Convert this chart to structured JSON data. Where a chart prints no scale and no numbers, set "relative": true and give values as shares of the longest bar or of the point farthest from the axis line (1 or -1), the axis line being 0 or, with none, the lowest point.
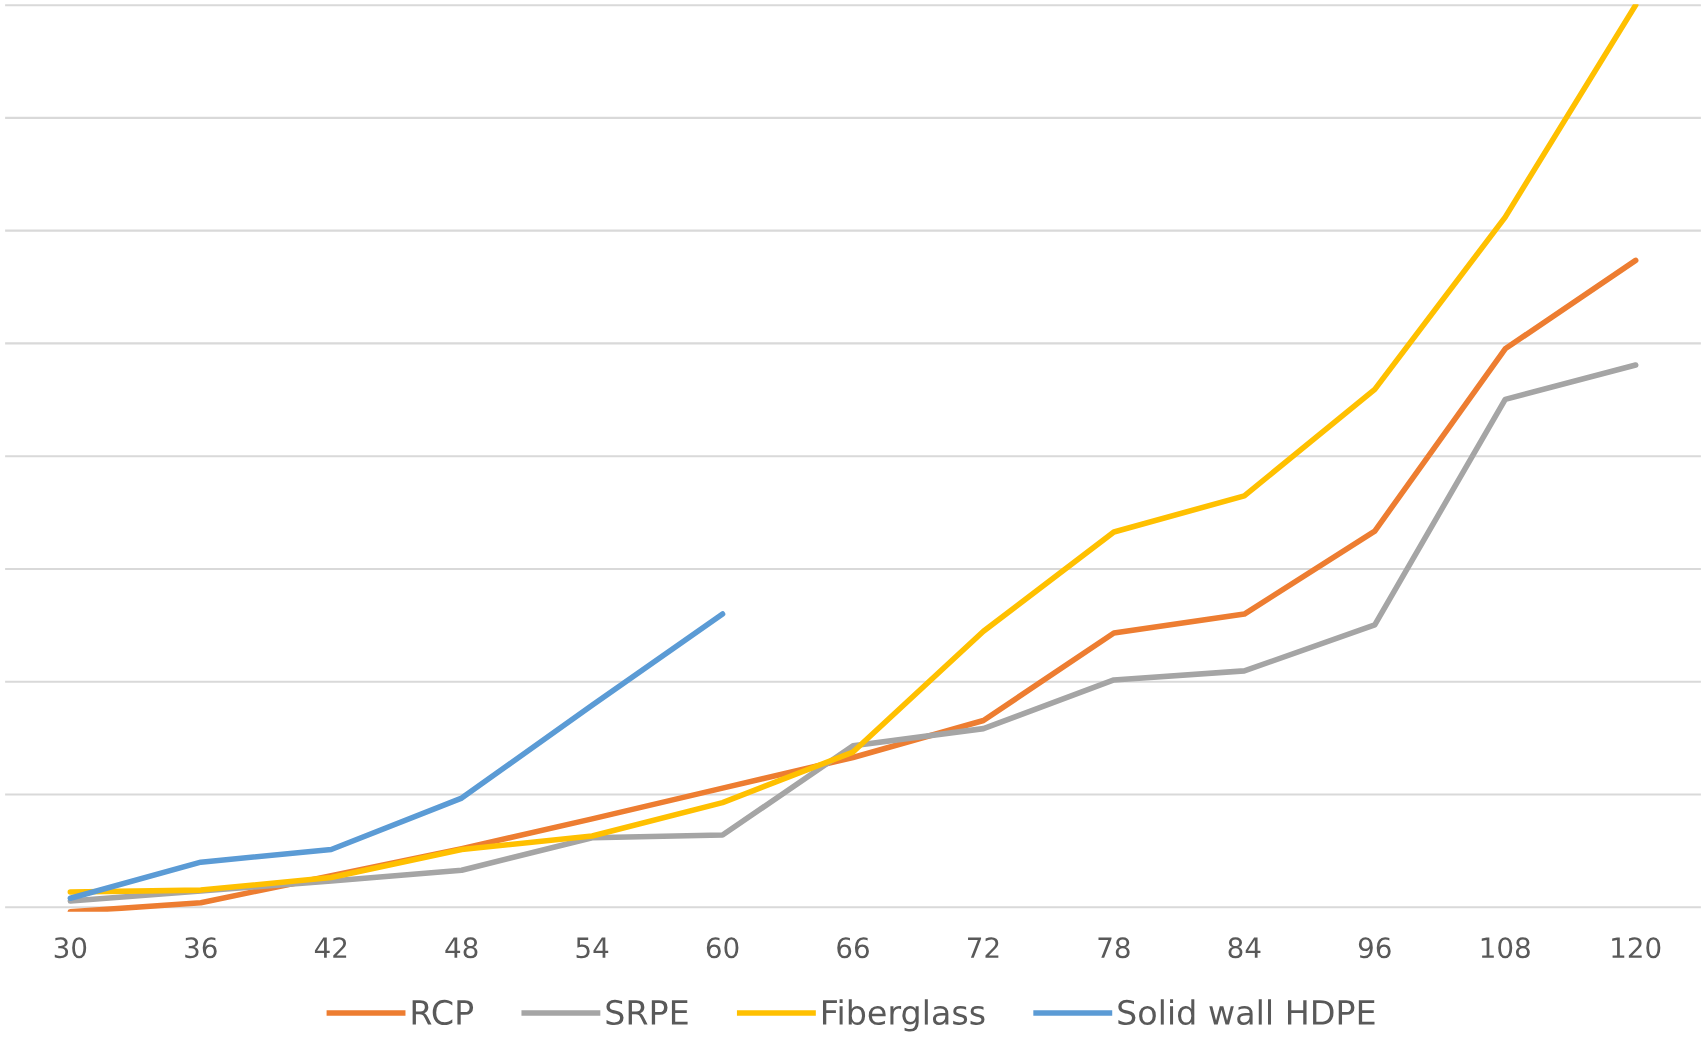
{
  "chart_data": {
    "type": "line",
    "relative": true,
    "grid": "y",
    "legend": "bottom",
    "line_style": "solid",
    "marker": "none",
    "categories": [
      "30",
      "36",
      "42",
      "48",
      "54",
      "60",
      "66",
      "72",
      "78",
      "84",
      "96",
      "108",
      "120"
    ],
    "series": [
      {
        "name": "RCP",
        "color": "#ed7d31",
        "values": [
          -0.005,
          0.005,
          0.035,
          0.065,
          0.098,
          0.132,
          0.166,
          0.207,
          0.304,
          0.325,
          0.417,
          0.619,
          0.717
        ]
      },
      {
        "name": "SRPE",
        "color": "#a5a5a5",
        "values": [
          0.007,
          0.018,
          0.029,
          0.041,
          0.077,
          0.08,
          0.179,
          0.198,
          0.252,
          0.262,
          0.313,
          0.563,
          0.601
        ]
      },
      {
        "name": "Fiberglass",
        "color": "#ffc000",
        "values": [
          0.017,
          0.019,
          0.033,
          0.064,
          0.079,
          0.116,
          0.172,
          0.306,
          0.416,
          0.456,
          0.574,
          0.765,
          1
        ]
      },
      {
        "name": "Solid wall HDPE",
        "color": "#5b9bd5",
        "values": [
          0.01,
          0.05,
          0.064,
          0.121,
          0.224,
          0.325,
          null,
          null,
          null,
          null,
          null,
          null,
          null
        ]
      }
    ]
  }
}
